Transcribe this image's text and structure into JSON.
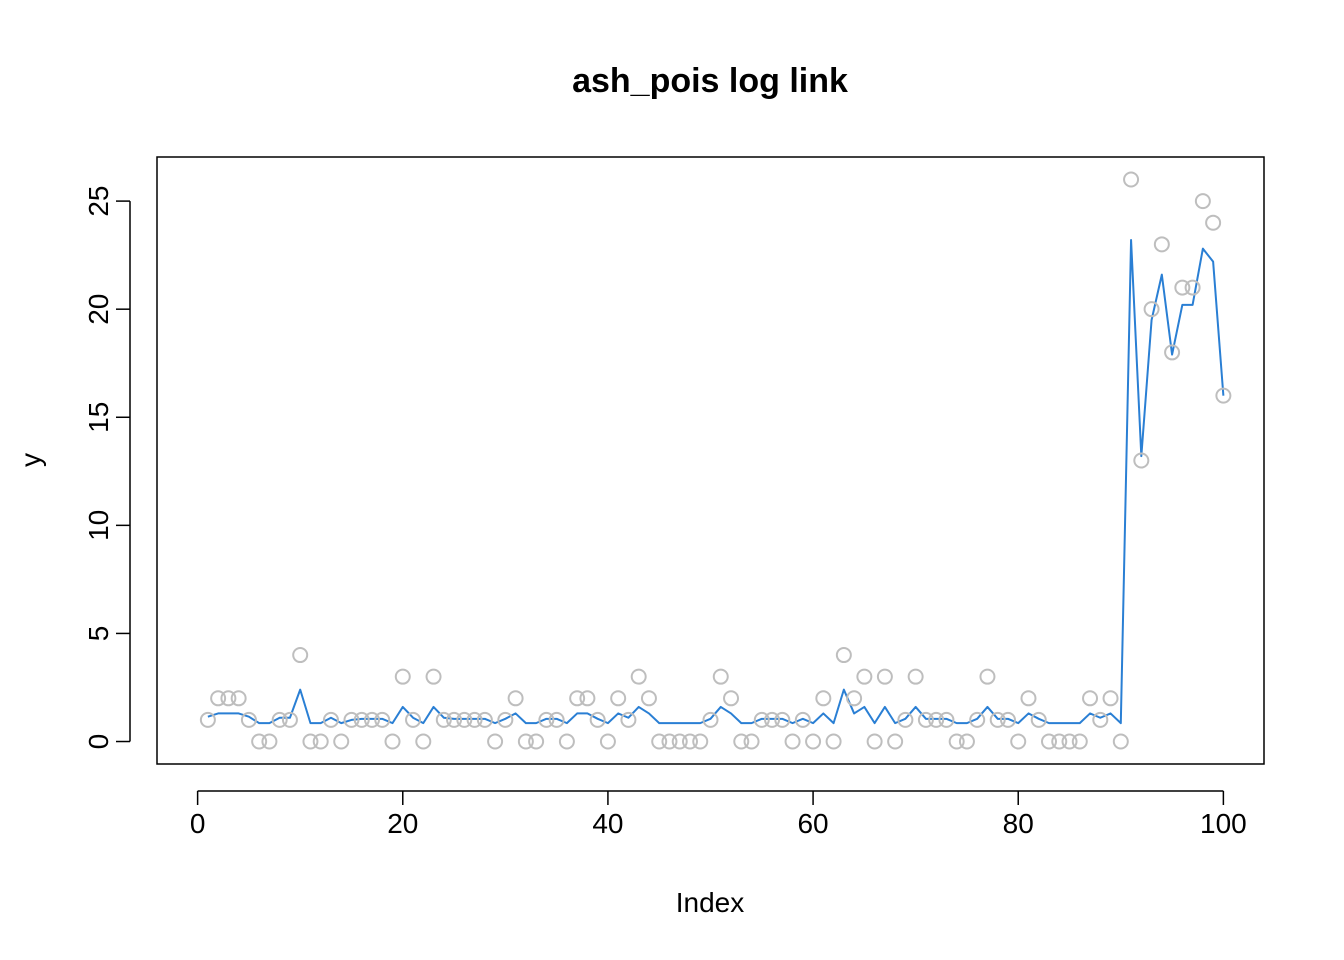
{
  "chart_data": {
    "type": "scatter",
    "title": "ash_pois log link",
    "xlabel": "Index",
    "ylabel": "y",
    "xlim": [
      -3.96,
      103.96
    ],
    "ylim": [
      -1.04,
      27.04
    ],
    "x_ticks": [
      0,
      20,
      40,
      60,
      80,
      100
    ],
    "y_ticks": [
      0,
      5,
      10,
      15,
      20,
      25
    ],
    "grid": false,
    "legend": "none",
    "point_color": "#bebebe",
    "line_color": "#2a7fd4",
    "series": [
      {
        "type": "scatter",
        "x": [
          1,
          2,
          3,
          4,
          5,
          6,
          7,
          8,
          9,
          10,
          11,
          12,
          13,
          14,
          15,
          16,
          17,
          18,
          19,
          20,
          21,
          22,
          23,
          24,
          25,
          26,
          27,
          28,
          29,
          30,
          31,
          32,
          33,
          34,
          35,
          36,
          37,
          38,
          39,
          40,
          41,
          42,
          43,
          44,
          45,
          46,
          47,
          48,
          49,
          50,
          51,
          52,
          53,
          54,
          55,
          56,
          57,
          58,
          59,
          60,
          61,
          62,
          63,
          64,
          65,
          66,
          67,
          68,
          69,
          70,
          71,
          72,
          73,
          74,
          75,
          76,
          77,
          78,
          79,
          80,
          81,
          82,
          83,
          84,
          85,
          86,
          87,
          88,
          89,
          90,
          91,
          92,
          93,
          94,
          95,
          96,
          97,
          98,
          99,
          100
        ],
        "values": [
          1,
          2,
          2,
          2,
          1,
          0,
          0,
          1,
          1,
          4,
          0,
          0,
          1,
          0,
          1,
          1,
          1,
          1,
          0,
          3,
          1,
          0,
          3,
          1,
          1,
          1,
          1,
          1,
          0,
          1,
          2,
          0,
          0,
          1,
          1,
          0,
          2,
          2,
          1,
          0,
          2,
          1,
          3,
          2,
          0,
          0,
          0,
          0,
          0,
          1,
          3,
          2,
          0,
          0,
          1,
          1,
          1,
          0,
          1,
          0,
          2,
          0,
          4,
          2,
          3,
          0,
          3,
          0,
          1,
          3,
          1,
          1,
          1,
          0,
          0,
          1,
          3,
          1,
          1,
          0,
          2,
          1,
          0,
          0,
          0,
          0,
          2,
          1,
          2,
          0,
          26,
          13,
          20,
          23,
          18,
          21,
          21,
          25,
          24,
          16
        ]
      },
      {
        "type": "line",
        "x": [
          1,
          2,
          3,
          4,
          5,
          6,
          7,
          8,
          9,
          10,
          11,
          12,
          13,
          14,
          15,
          16,
          17,
          18,
          19,
          20,
          21,
          22,
          23,
          24,
          25,
          26,
          27,
          28,
          29,
          30,
          31,
          32,
          33,
          34,
          35,
          36,
          37,
          38,
          39,
          40,
          41,
          42,
          43,
          44,
          45,
          46,
          47,
          48,
          49,
          50,
          51,
          52,
          53,
          54,
          55,
          56,
          57,
          58,
          59,
          60,
          61,
          62,
          63,
          64,
          65,
          66,
          67,
          68,
          69,
          70,
          71,
          72,
          73,
          74,
          75,
          76,
          77,
          78,
          79,
          80,
          81,
          82,
          83,
          84,
          85,
          86,
          87,
          88,
          89,
          90,
          91,
          92,
          93,
          94,
          95,
          96,
          97,
          98,
          99,
          100
        ],
        "values": [
          1.15,
          1.3,
          1.3,
          1.3,
          1.15,
          0.85,
          0.85,
          1.1,
          1.1,
          2.4,
          0.85,
          0.85,
          1.1,
          0.85,
          1.0,
          1.05,
          1.05,
          1.05,
          0.85,
          1.6,
          1.1,
          0.85,
          1.6,
          1.1,
          1.05,
          1.05,
          1.05,
          1.05,
          0.85,
          1.05,
          1.3,
          0.85,
          0.85,
          1.05,
          1.05,
          0.85,
          1.3,
          1.3,
          1.05,
          0.85,
          1.3,
          1.1,
          1.6,
          1.3,
          0.85,
          0.85,
          0.85,
          0.85,
          0.85,
          1.05,
          1.6,
          1.3,
          0.85,
          0.85,
          1.05,
          1.05,
          1.05,
          0.85,
          1.05,
          0.85,
          1.3,
          0.85,
          2.4,
          1.3,
          1.6,
          0.85,
          1.6,
          0.85,
          1.05,
          1.6,
          1.05,
          1.05,
          1.05,
          0.85,
          0.85,
          1.05,
          1.6,
          1.05,
          1.05,
          0.85,
          1.3,
          1.05,
          0.85,
          0.85,
          0.85,
          0.85,
          1.3,
          1.1,
          1.3,
          0.85,
          23.2,
          13.2,
          19.5,
          21.6,
          17.9,
          20.2,
          20.2,
          22.8,
          22.2,
          16.0
        ]
      }
    ]
  }
}
